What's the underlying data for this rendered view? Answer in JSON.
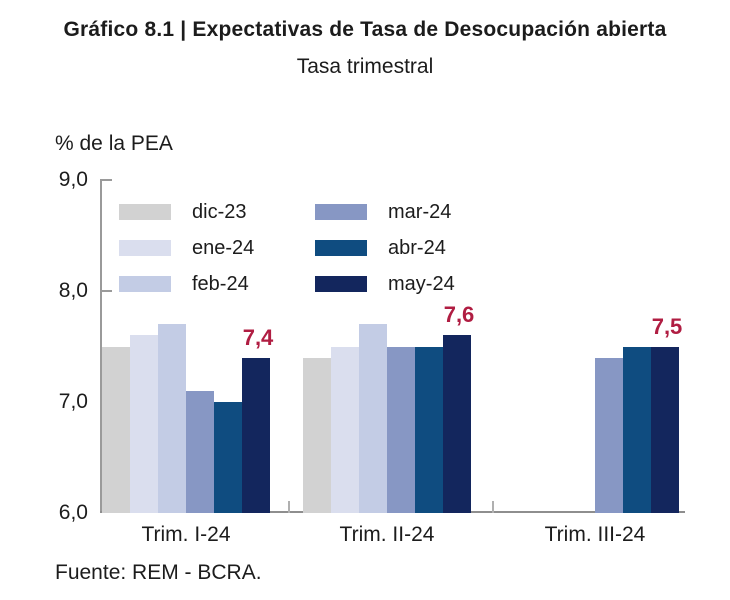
{
  "header": {
    "title": "Gráfico 8.1 | Expectativas de Tasa de Desocupación abierta",
    "subtitle": "Tasa trimestral"
  },
  "chart_data": {
    "type": "bar",
    "title": "Gráfico 8.1 | Expectativas de Tasa de Desocupación abierta",
    "subtitle": "Tasa trimestral",
    "ylabel": "% de la PEA",
    "xlabel": "",
    "ylim": [
      6.0,
      9.0
    ],
    "grid": false,
    "legend_position": "top-left-inside-two-columns",
    "yticks": [
      {
        "value": 9.0,
        "label": "9,0"
      },
      {
        "value": 8.0,
        "label": "8,0"
      },
      {
        "value": 7.0,
        "label": "7,0"
      },
      {
        "value": 6.0,
        "label": "6,0"
      }
    ],
    "categories": [
      "Trim. I-24",
      "Trim. II-24",
      "Trim. III-24"
    ],
    "series": [
      {
        "name": "dic-23",
        "color": "#d2d2d2",
        "values": [
          7.5,
          7.4,
          null
        ]
      },
      {
        "name": "ene-24",
        "color": "#dadeee",
        "values": [
          7.6,
          7.5,
          null
        ]
      },
      {
        "name": "feb-24",
        "color": "#c3cce5",
        "values": [
          7.7,
          7.7,
          null
        ]
      },
      {
        "name": "mar-24",
        "color": "#8797c4",
        "values": [
          7.1,
          7.5,
          7.4
        ]
      },
      {
        "name": "abr-24",
        "color": "#0f4c80",
        "values": [
          7.0,
          7.5,
          7.5
        ]
      },
      {
        "name": "may-24",
        "color": "#13265d",
        "values": [
          7.4,
          7.6,
          7.5
        ]
      }
    ],
    "annotations": [
      {
        "category": 0,
        "series": "may-24",
        "label": "7,4"
      },
      {
        "category": 1,
        "series": "may-24",
        "label": "7,6"
      },
      {
        "category": 2,
        "series": "may-24",
        "label": "7,5"
      }
    ],
    "annotation_color": "#b01d42",
    "axis_color": "#9a9a9a"
  },
  "footer": {
    "source": "Fuente: REM - BCRA."
  }
}
